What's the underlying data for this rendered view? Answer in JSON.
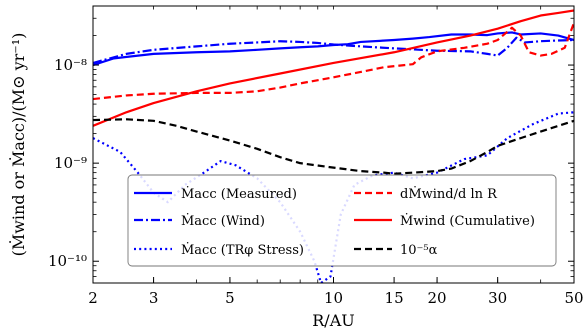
{
  "chart_data": {
    "type": "line",
    "title": "",
    "xlabel": "R/AU",
    "ylabel": "(Ṁwind or Ṁacc)/(M⊙ yr⁻¹)",
    "xscale": "log",
    "yscale": "log",
    "xlim": [
      2,
      50
    ],
    "ylim": [
      6e-11,
      4e-08
    ],
    "grid": false,
    "legend_placement": "lower-center",
    "x_ticks": [
      2,
      3,
      5,
      10,
      15,
      20,
      30,
      50
    ],
    "x_tick_labels": [
      "2",
      "3",
      "5",
      "10",
      "15",
      "20",
      "30",
      "50"
    ],
    "y_ticks": [
      1e-10,
      1e-09,
      1e-08
    ],
    "y_tick_labels": [
      "10⁻¹⁰",
      "10⁻⁹",
      "10⁻⁸"
    ],
    "series": [
      {
        "name": "Ṁacc (Measured)",
        "color": "#0000ff",
        "dash": "solid",
        "points": [
          [
            2,
            1e-08
          ],
          [
            2.3,
            1.17e-08
          ],
          [
            3,
            1.3e-08
          ],
          [
            4,
            1.35e-08
          ],
          [
            5,
            1.38e-08
          ],
          [
            6,
            1.43e-08
          ],
          [
            7,
            1.48e-08
          ],
          [
            8,
            1.52e-08
          ],
          [
            9,
            1.55e-08
          ],
          [
            10,
            1.6e-08
          ],
          [
            11,
            1.63e-08
          ],
          [
            12,
            1.72e-08
          ],
          [
            15,
            1.8e-08
          ],
          [
            17,
            1.86e-08
          ],
          [
            19,
            1.93e-08
          ],
          [
            22,
            2.05e-08
          ],
          [
            25,
            2.05e-08
          ],
          [
            28,
            2.02e-08
          ],
          [
            30,
            2.1e-08
          ],
          [
            33,
            2.15e-08
          ],
          [
            35,
            2.05e-08
          ],
          [
            40,
            2.1e-08
          ],
          [
            45,
            2e-08
          ],
          [
            50,
            1.8e-08
          ]
        ]
      },
      {
        "name": "Ṁacc (Wind)",
        "color": "#0000ff",
        "dash": "dashdot",
        "points": [
          [
            2,
            1.05e-08
          ],
          [
            2.5,
            1.3e-08
          ],
          [
            3,
            1.43e-08
          ],
          [
            4,
            1.55e-08
          ],
          [
            5,
            1.65e-08
          ],
          [
            6,
            1.7e-08
          ],
          [
            7,
            1.75e-08
          ],
          [
            8,
            1.72e-08
          ],
          [
            9,
            1.68e-08
          ],
          [
            10,
            1.62e-08
          ],
          [
            12,
            1.55e-08
          ],
          [
            15,
            1.48e-08
          ],
          [
            20,
            1.4e-08
          ],
          [
            25,
            1.38e-08
          ],
          [
            28,
            1.3e-08
          ],
          [
            30,
            1.25e-08
          ],
          [
            32,
            1.5e-08
          ],
          [
            34,
            1.9e-08
          ],
          [
            36,
            1.7e-08
          ],
          [
            40,
            1.75e-08
          ],
          [
            45,
            1.78e-08
          ],
          [
            50,
            1.8e-08
          ]
        ]
      },
      {
        "name": "Ṁacc (TRφ Stress)",
        "color": "#0000ff",
        "dash": "dotted",
        "points": [
          [
            2,
            1.8e-09
          ],
          [
            2.4,
            1.3e-09
          ],
          [
            2.7,
            8e-10
          ],
          [
            3,
            5e-10
          ],
          [
            3.3,
            4e-10
          ],
          [
            3.7,
            6e-10
          ],
          [
            4.2,
            8e-10
          ],
          [
            4.7,
            1.05e-09
          ],
          [
            5.2,
            9.5e-10
          ],
          [
            6,
            7e-10
          ],
          [
            7,
            4e-10
          ],
          [
            8,
            2e-10
          ],
          [
            8.8,
            1e-10
          ],
          [
            9.2,
            6e-11
          ],
          [
            9.8,
            7e-11
          ],
          [
            10.5,
            3e-10
          ],
          [
            11.5,
            6e-10
          ],
          [
            13,
            7.5e-10
          ],
          [
            15,
            8e-10
          ],
          [
            17,
            7e-10
          ],
          [
            20,
            8e-10
          ],
          [
            24,
            1.1e-09
          ],
          [
            28,
            1.2e-09
          ],
          [
            32,
            1.8e-09
          ],
          [
            38,
            2.5e-09
          ],
          [
            45,
            3.2e-09
          ],
          [
            50,
            3.3e-09
          ]
        ]
      },
      {
        "name": "dṀwind/d ln R",
        "color": "#ff0000",
        "dash": "dashed",
        "points": [
          [
            2,
            4.5e-09
          ],
          [
            2.5,
            4.9e-09
          ],
          [
            3,
            5.1e-09
          ],
          [
            4,
            5.2e-09
          ],
          [
            5,
            5.2e-09
          ],
          [
            6,
            5.4e-09
          ],
          [
            7,
            5.9e-09
          ],
          [
            8,
            6.5e-09
          ],
          [
            10,
            7.5e-09
          ],
          [
            12,
            8.5e-09
          ],
          [
            14,
            9.5e-09
          ],
          [
            17,
            1.02e-08
          ],
          [
            18,
            1.2e-08
          ],
          [
            20,
            1.38e-08
          ],
          [
            24,
            1.5e-08
          ],
          [
            28,
            1.65e-08
          ],
          [
            30,
            1.8e-08
          ],
          [
            33,
            2.4e-08
          ],
          [
            35,
            2e-08
          ],
          [
            37,
            1.35e-08
          ],
          [
            40,
            1.25e-08
          ],
          [
            43,
            1.3e-08
          ],
          [
            47,
            1.5e-08
          ],
          [
            50,
            2.7e-08
          ]
        ]
      },
      {
        "name": "Ṁwind (Cumulative)",
        "color": "#ff0000",
        "dash": "solid",
        "points": [
          [
            2,
            2.4e-09
          ],
          [
            2.5,
            3.3e-09
          ],
          [
            3,
            4.1e-09
          ],
          [
            4,
            5.4e-09
          ],
          [
            5,
            6.5e-09
          ],
          [
            7,
            8.2e-09
          ],
          [
            10,
            1.05e-08
          ],
          [
            15,
            1.35e-08
          ],
          [
            20,
            1.7e-08
          ],
          [
            25,
            2e-08
          ],
          [
            30,
            2.35e-08
          ],
          [
            35,
            2.8e-08
          ],
          [
            40,
            3.2e-08
          ],
          [
            45,
            3.4e-08
          ],
          [
            50,
            3.6e-08
          ]
        ]
      },
      {
        "name": "10⁻⁵α",
        "color": "#000000",
        "dash": "dashed",
        "points": [
          [
            2,
            2.75e-09
          ],
          [
            2.5,
            2.8e-09
          ],
          [
            3,
            2.7e-09
          ],
          [
            3.5,
            2.4e-09
          ],
          [
            4,
            2.1e-09
          ],
          [
            5,
            1.7e-09
          ],
          [
            6,
            1.4e-09
          ],
          [
            7,
            1.15e-09
          ],
          [
            8,
            1e-09
          ],
          [
            10,
            9e-10
          ],
          [
            12,
            8.3e-10
          ],
          [
            14,
            8e-10
          ],
          [
            15,
            7.8e-10
          ],
          [
            17,
            8e-10
          ],
          [
            20,
            8.3e-10
          ],
          [
            22,
            8.8e-10
          ],
          [
            25,
            1.05e-09
          ],
          [
            28,
            1.3e-09
          ],
          [
            30,
            1.5e-09
          ],
          [
            35,
            1.8e-09
          ],
          [
            40,
            2.1e-09
          ],
          [
            45,
            2.4e-09
          ],
          [
            50,
            2.7e-09
          ]
        ]
      }
    ]
  }
}
